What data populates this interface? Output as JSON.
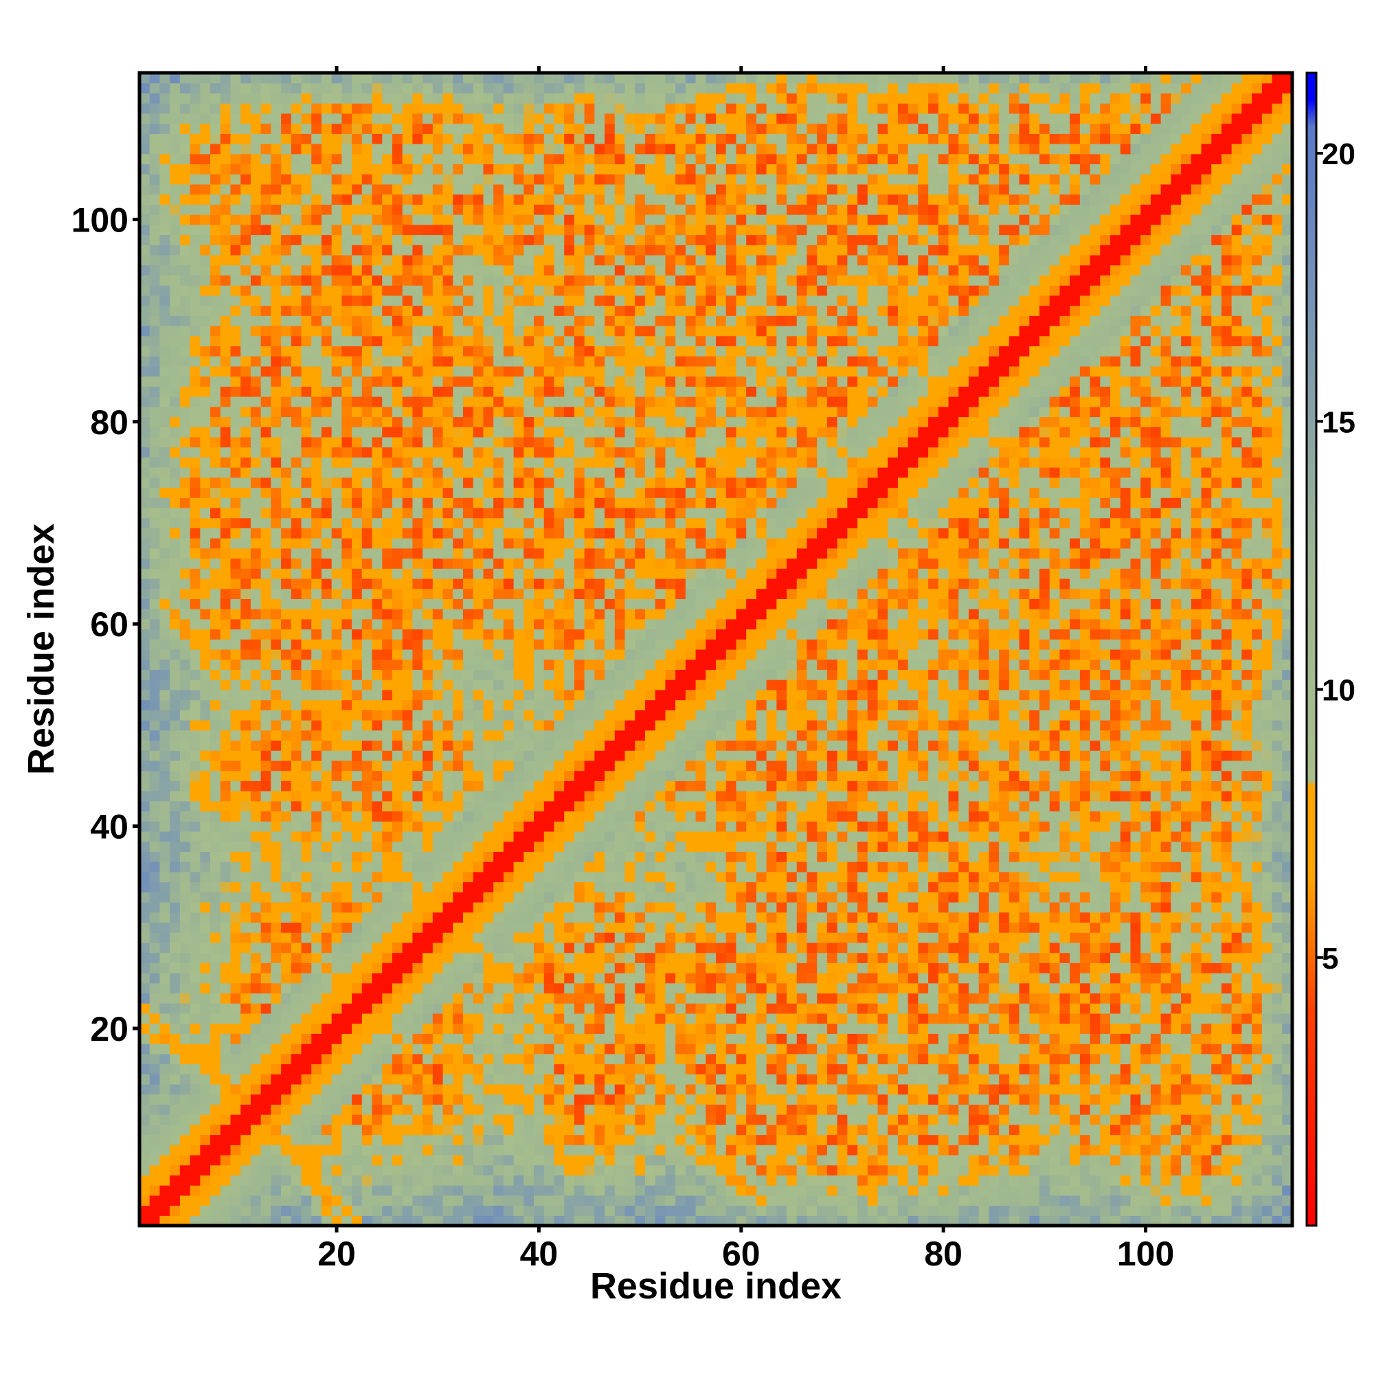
{
  "chart_data": {
    "type": "heatmap",
    "title": "",
    "xlabel": "Residue index",
    "ylabel": "Residue index",
    "n_residues": 114,
    "xlim": [
      1,
      114
    ],
    "ylim": [
      1,
      114
    ],
    "x_ticks": [
      20,
      40,
      60,
      80,
      100
    ],
    "y_ticks": [
      20,
      40,
      60,
      80,
      100
    ],
    "colorbar": {
      "ticks": [
        5,
        10,
        15,
        20
      ],
      "range": [
        0,
        21.5
      ],
      "stops": [
        {
          "value": 0,
          "color": "#ff0000"
        },
        {
          "value": 4,
          "color": "#ff4000"
        },
        {
          "value": 6.5,
          "color": "#ffa500"
        },
        {
          "value": 8.2,
          "color": "#ffa500"
        },
        {
          "value": 8.3,
          "color": "#a8be8c"
        },
        {
          "value": 12,
          "color": "#a0b890"
        },
        {
          "value": 17,
          "color": "#7896b4"
        },
        {
          "value": 20.5,
          "color": "#5a78c8"
        },
        {
          "value": 21.0,
          "color": "#0000ff"
        },
        {
          "value": 21.5,
          "color": "#0000ff"
        }
      ]
    },
    "diagonal_band": {
      "min_residue": 1,
      "max_residue": 114
    },
    "contact_segments": [
      {
        "i": [
          1,
          10
        ],
        "j": [
          14,
          22
        ],
        "relation": "antiparallel"
      },
      {
        "i": [
          13,
          22
        ],
        "j": [
          23,
          31
        ],
        "relation": "antiparallel"
      },
      {
        "i": [
          23,
          30
        ],
        "j": [
          31,
          40
        ],
        "relation": "antiparallel"
      },
      {
        "i": [
          13,
          20
        ],
        "j": [
          1,
          11
        ],
        "relation": "antiparallel"
      },
      {
        "i": [
          51,
          56
        ],
        "j": [
          18,
          24
        ],
        "relation": "antiparallel"
      },
      {
        "i": [
          54,
          62
        ],
        "j": [
          3,
          11
        ],
        "relation": "antiparallel"
      },
      {
        "i": [
          58,
          65
        ],
        "j": [
          65,
          75
        ],
        "relation": "antiparallel"
      },
      {
        "i": [
          64,
          73
        ],
        "j": [
          74,
          83
        ],
        "relation": "antiparallel"
      },
      {
        "i": [
          73,
          79
        ],
        "j": [
          83,
          97
        ],
        "relation": "antiparallel"
      },
      {
        "i": [
          64,
          73
        ],
        "j": [
          50,
          60
        ],
        "relation": "antiparallel"
      },
      {
        "i": [
          73,
          80
        ],
        "j": [
          62,
          70
        ],
        "relation": "antiparallel"
      },
      {
        "i": [
          89,
          96
        ],
        "j": [
          72,
          79
        ],
        "relation": "antiparallel"
      },
      {
        "i": [
          4,
          9
        ],
        "j": [
          54,
          60
        ],
        "relation": "antiparallel"
      },
      {
        "i": [
          19,
          23
        ],
        "j": [
          50,
          56
        ],
        "relation": "antiparallel"
      }
    ]
  }
}
